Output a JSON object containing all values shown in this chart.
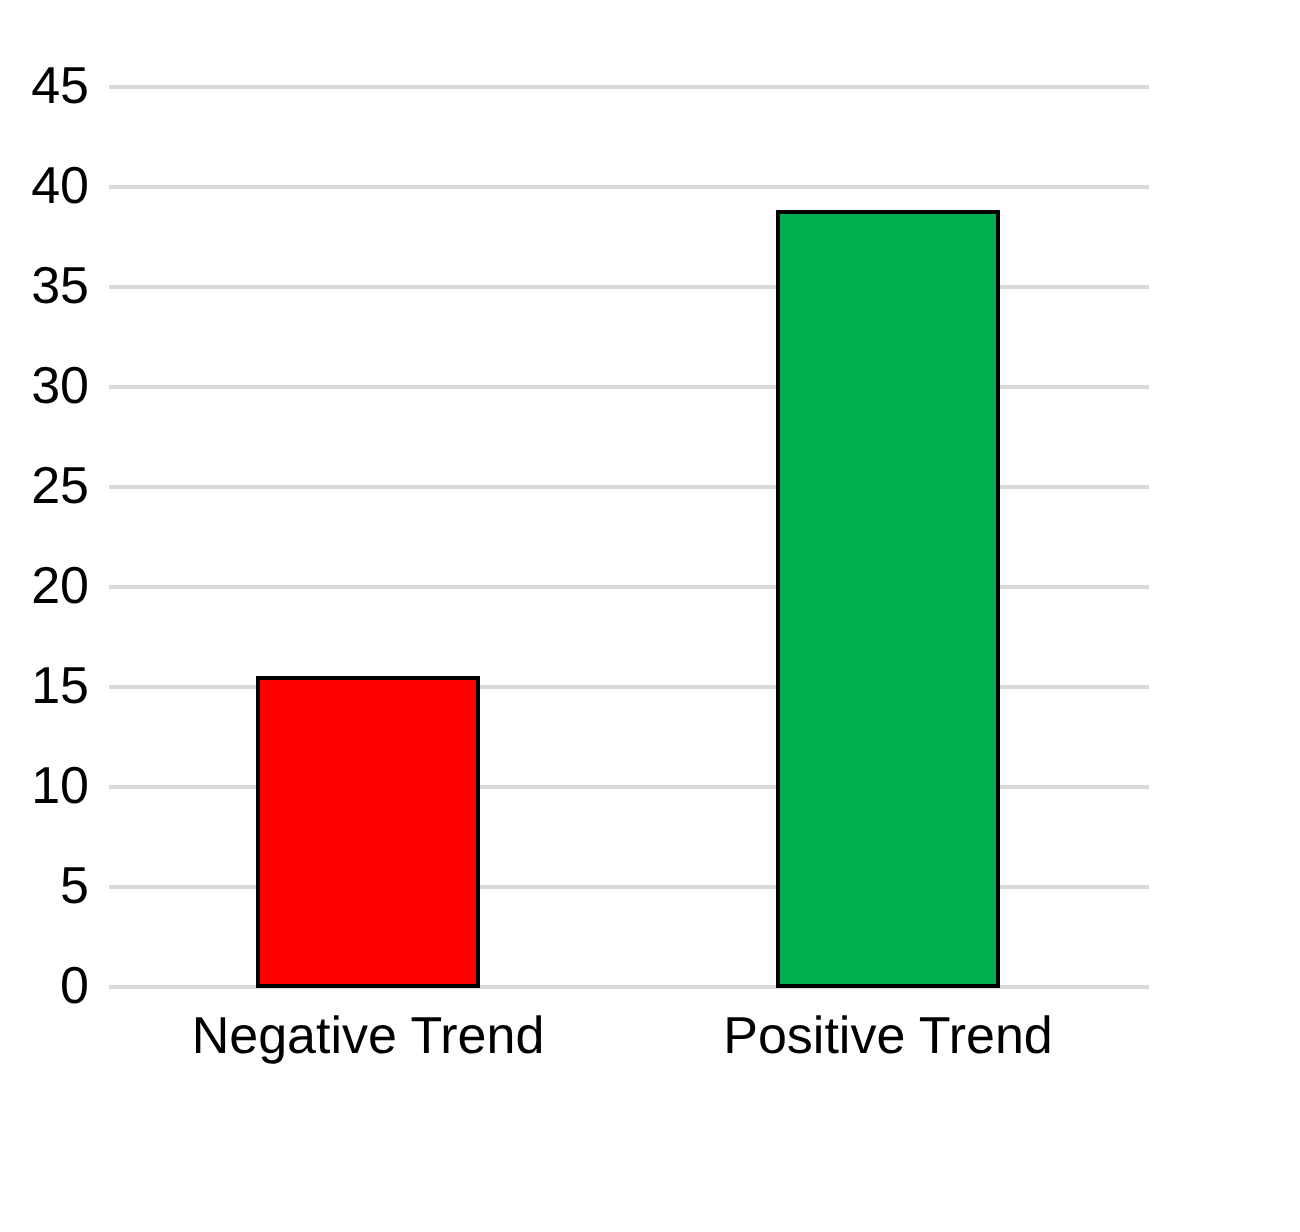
{
  "chart_data": {
    "type": "bar",
    "categories": [
      "Negative Trend",
      "Positive Trend"
    ],
    "colors": [
      "#ff0000",
      "#00b050"
    ],
    "values": [
      15.4,
      38.7
    ],
    "ylim": [
      0,
      45
    ],
    "yticks": [
      0,
      5,
      10,
      15,
      20,
      25,
      30,
      35,
      40,
      45
    ],
    "grid": "y"
  }
}
